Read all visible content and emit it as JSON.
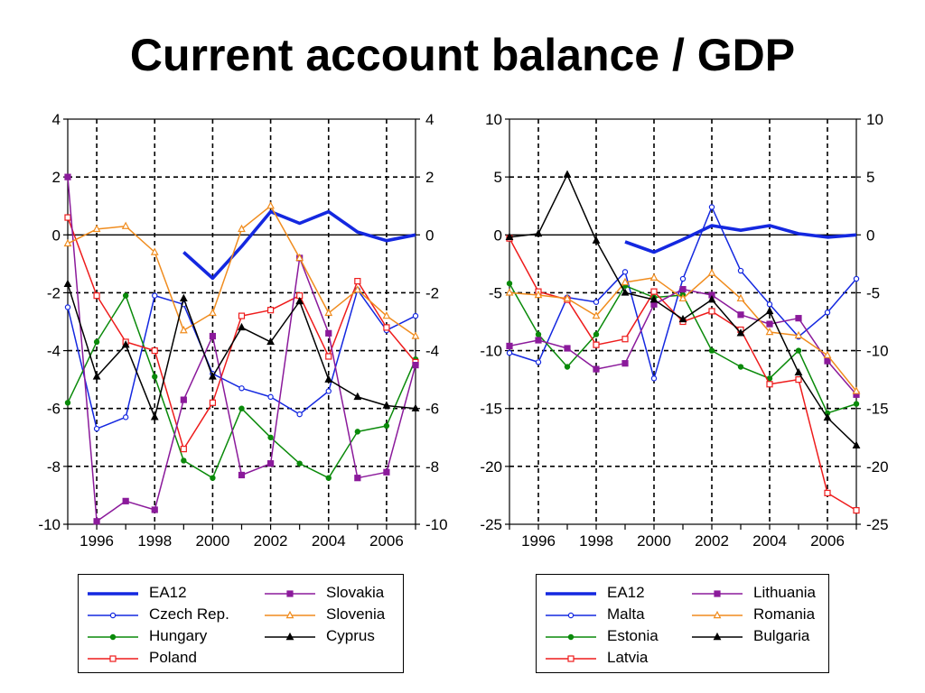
{
  "title": "Current account balance / GDP",
  "chart_data": [
    {
      "type": "line",
      "x": [
        1995,
        1996,
        1997,
        1998,
        1999,
        2000,
        2001,
        2002,
        2003,
        2004,
        2005,
        2006,
        2007
      ],
      "x_range": [
        1995,
        2007
      ],
      "xticks": [
        1996,
        1998,
        2000,
        2002,
        2004,
        2006
      ],
      "xtick_labels": [
        "1996",
        "1998",
        "2000",
        "2002",
        "2004",
        "2006"
      ],
      "ylim": [
        -10,
        4
      ],
      "yticks": [
        -10,
        -8,
        -6,
        -4,
        -2,
        0,
        2,
        4
      ],
      "ytick_labels": [
        "-10",
        "-8",
        "-6",
        "-4",
        "-2",
        "0",
        "2",
        "4"
      ],
      "grid": true,
      "axes": "left-and-right",
      "legend_placement": "below",
      "series": [
        {
          "name": "EA12",
          "color": "#1428e0",
          "marker": "none",
          "values": [
            null,
            null,
            null,
            null,
            -0.6,
            -1.5,
            -0.4,
            0.8,
            0.4,
            0.8,
            0.1,
            -0.2,
            0.0
          ]
        },
        {
          "name": "Czech Rep.",
          "color": "#1428e0",
          "marker": "open-circle",
          "values": [
            -2.5,
            -6.7,
            -6.3,
            -2.1,
            -2.4,
            -4.8,
            -5.3,
            -5.6,
            -6.2,
            -5.4,
            -1.9,
            -3.3,
            -2.8
          ]
        },
        {
          "name": "Hungary",
          "color": "#0a8a0a",
          "marker": "filled-circle",
          "values": [
            -5.8,
            -3.7,
            -2.1,
            -4.9,
            -7.8,
            -8.4,
            -6.0,
            -7.0,
            -7.9,
            -8.4,
            -6.8,
            -6.6,
            -4.3
          ]
        },
        {
          "name": "Poland",
          "color": "#ee1c1c",
          "marker": "open-square",
          "values": [
            0.6,
            -2.1,
            -3.7,
            -4.0,
            -7.4,
            -5.8,
            -2.8,
            -2.6,
            -2.1,
            -4.2,
            -1.6,
            -3.2,
            -4.4
          ]
        },
        {
          "name": "Slovakia",
          "color": "#8b1a9b",
          "marker": "filled-square",
          "values": [
            2.0,
            -9.9,
            -9.2,
            -9.5,
            -5.7,
            -3.5,
            -8.3,
            -7.9,
            -0.8,
            -3.4,
            -8.4,
            -8.2,
            -4.5
          ]
        },
        {
          "name": "Slovenia",
          "color": "#f08c1e",
          "marker": "open-triangle",
          "values": [
            -0.3,
            0.2,
            0.3,
            -0.6,
            -3.3,
            -2.7,
            0.2,
            1.0,
            -0.8,
            -2.7,
            -1.9,
            -2.8,
            -3.5
          ]
        },
        {
          "name": "Cyprus",
          "color": "#000000",
          "marker": "filled-triangle",
          "values": [
            -1.7,
            -4.9,
            -3.8,
            -6.3,
            -2.2,
            -4.9,
            -3.2,
            -3.7,
            -2.3,
            -5.0,
            -5.6,
            -5.9,
            -6.0
          ]
        }
      ]
    },
    {
      "type": "line",
      "x": [
        1995,
        1996,
        1997,
        1998,
        1999,
        2000,
        2001,
        2002,
        2003,
        2004,
        2005,
        2006,
        2007
      ],
      "x_range": [
        1995,
        2007
      ],
      "xticks": [
        1996,
        1998,
        2000,
        2002,
        2004,
        2006
      ],
      "xtick_labels": [
        "1996",
        "1998",
        "2000",
        "2002",
        "2004",
        "2006"
      ],
      "ylim": [
        -25,
        10
      ],
      "yticks": [
        -25,
        -20,
        -15,
        -10,
        -5,
        0,
        5,
        10
      ],
      "ytick_labels": [
        "-25",
        "-20",
        "-15",
        "-10",
        "-5",
        "0",
        "5",
        "10"
      ],
      "grid": true,
      "axes": "left-and-right",
      "legend_placement": "below",
      "series": [
        {
          "name": "EA12",
          "color": "#1428e0",
          "marker": "none",
          "values": [
            null,
            null,
            null,
            null,
            -0.6,
            -1.5,
            -0.4,
            0.8,
            0.4,
            0.8,
            0.1,
            -0.2,
            0.0
          ]
        },
        {
          "name": "Malta",
          "color": "#1428e0",
          "marker": "open-circle",
          "values": [
            -10.2,
            -11.0,
            -5.4,
            -5.8,
            -3.2,
            -12.4,
            -3.8,
            2.4,
            -3.1,
            -6.0,
            -8.8,
            -6.7,
            -3.8
          ]
        },
        {
          "name": "Estonia",
          "color": "#0a8a0a",
          "marker": "filled-circle",
          "values": [
            -4.2,
            -8.6,
            -11.4,
            -8.6,
            -4.4,
            -5.4,
            -5.2,
            -10.0,
            -11.4,
            -12.4,
            -10.0,
            -15.4,
            -14.6
          ]
        },
        {
          "name": "Latvia",
          "color": "#ee1c1c",
          "marker": "open-square",
          "values": [
            -0.3,
            -4.9,
            -5.6,
            -9.5,
            -9.0,
            -4.9,
            -7.5,
            -6.6,
            -8.2,
            -12.9,
            -12.5,
            -22.3,
            -23.8
          ]
        },
        {
          "name": "Lithuania",
          "color": "#8b1a9b",
          "marker": "filled-square",
          "values": [
            -9.6,
            -9.1,
            -9.8,
            -11.6,
            -11.1,
            -6.0,
            -4.7,
            -5.2,
            -6.9,
            -7.7,
            -7.2,
            -10.9,
            -13.8
          ]
        },
        {
          "name": "Romania",
          "color": "#f08c1e",
          "marker": "open-triangle",
          "values": [
            -5.0,
            -5.2,
            -5.5,
            -7.0,
            -4.1,
            -3.7,
            -5.5,
            -3.3,
            -5.5,
            -8.4,
            -8.7,
            -10.4,
            -13.5
          ]
        },
        {
          "name": "Bulgaria",
          "color": "#000000",
          "marker": "filled-triangle",
          "values": [
            -0.2,
            0.1,
            5.2,
            -0.5,
            -5.0,
            -5.6,
            -7.3,
            -5.6,
            -8.5,
            -6.6,
            -11.9,
            -15.8,
            -18.2
          ]
        }
      ]
    }
  ],
  "legends": [
    {
      "columns": [
        [
          "EA12",
          "Czech Rep.",
          "Hungary",
          "Poland"
        ],
        [
          "Slovakia",
          "Slovenia",
          "Cyprus"
        ]
      ]
    },
    {
      "columns": [
        [
          "EA12",
          "Malta",
          "Estonia",
          "Latvia"
        ],
        [
          "Lithuania",
          "Romania",
          "Bulgaria"
        ]
      ]
    }
  ]
}
